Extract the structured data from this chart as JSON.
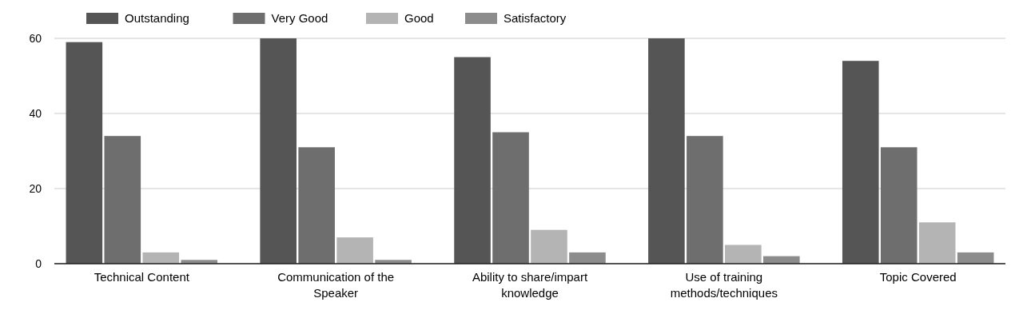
{
  "chart_data": {
    "type": "bar",
    "categories": [
      "Technical Content",
      "Communication of the Speaker",
      "Ability to share/impart knowledge",
      "Use of training methods/techniques",
      "Topic Covered"
    ],
    "series": [
      {
        "name": "Outstanding",
        "color": "#555555",
        "values": [
          59,
          60,
          55,
          60,
          54
        ]
      },
      {
        "name": "Very Good",
        "color": "#6e6e6e",
        "values": [
          34,
          31,
          35,
          34,
          31
        ]
      },
      {
        "name": "Good",
        "color": "#b4b4b4",
        "values": [
          3,
          7,
          9,
          5,
          11
        ]
      },
      {
        "name": "Satisfactory",
        "color": "#8c8c8c",
        "values": [
          1,
          1,
          3,
          2,
          3
        ]
      }
    ],
    "ylim": [
      0,
      60
    ],
    "yticks": [
      0,
      20,
      40,
      60
    ],
    "grid": "y",
    "legend": "top left"
  }
}
